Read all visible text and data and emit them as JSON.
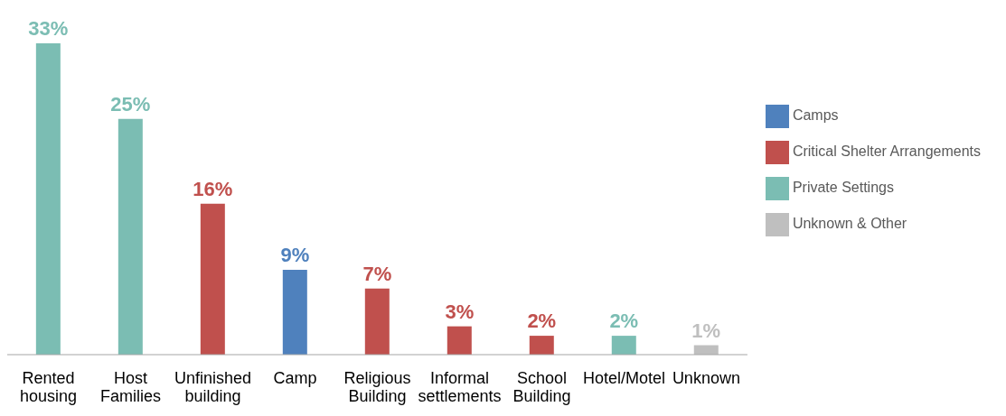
{
  "chart_data": {
    "type": "bar",
    "categories": [
      "Rented housing",
      "Host Families",
      "Unfinished building",
      "Camp",
      "Religious Building",
      "Informal settlements",
      "School Building",
      "Hotel/Motel",
      "Unknown"
    ],
    "series": [
      {
        "name": "Camps",
        "color": "#4f81bd",
        "values": [
          null,
          null,
          null,
          9,
          null,
          null,
          null,
          null,
          null
        ],
        "value_labels": [
          null,
          null,
          null,
          "9%",
          null,
          null,
          null,
          null,
          null
        ]
      },
      {
        "name": "Critical Shelter Arrangements",
        "color": "#c0504d",
        "values": [
          null,
          null,
          16,
          null,
          7,
          3,
          2,
          null,
          null
        ],
        "value_labels": [
          null,
          null,
          "16%",
          null,
          "7%",
          "3%",
          "2%",
          null,
          null
        ]
      },
      {
        "name": "Private Settings",
        "color": "#7bbdb3",
        "values": [
          33,
          25,
          null,
          null,
          null,
          null,
          null,
          2,
          null
        ],
        "value_labels": [
          "33%",
          "25%",
          null,
          null,
          null,
          null,
          null,
          "2%",
          null
        ]
      },
      {
        "name": "Unknown & Other",
        "color": "#bfbfbf",
        "values": [
          null,
          null,
          null,
          null,
          null,
          null,
          null,
          null,
          1
        ],
        "value_labels": [
          null,
          null,
          null,
          null,
          null,
          null,
          null,
          null,
          "1%"
        ]
      }
    ],
    "legend": "right",
    "grid": false
  }
}
